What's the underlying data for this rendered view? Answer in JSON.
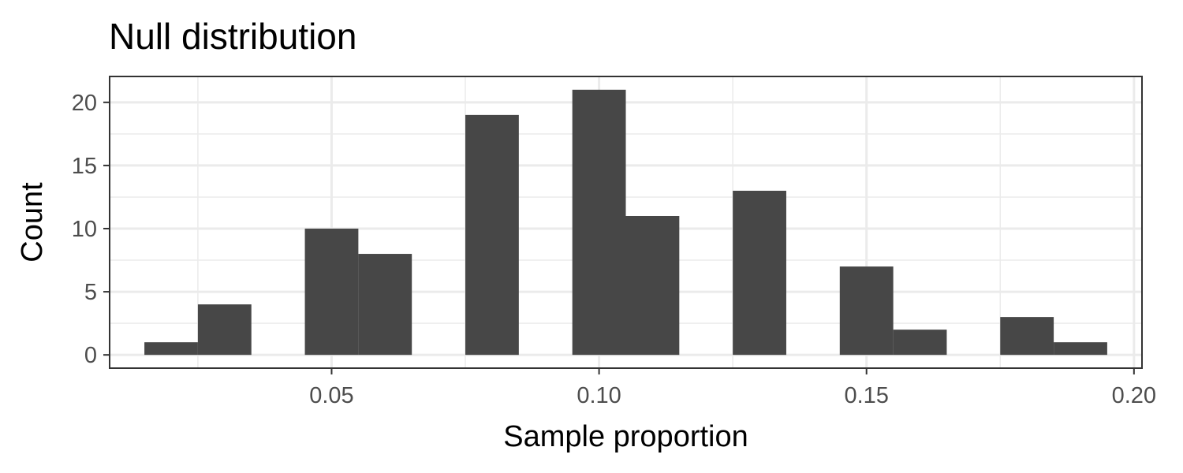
{
  "chart_data": {
    "type": "bar",
    "title": "Null distribution",
    "xlabel": "Sample proportion",
    "ylabel": "Count",
    "bin_width": 0.01,
    "bins": [
      {
        "x": 0.02,
        "count": 1
      },
      {
        "x": 0.03,
        "count": 4
      },
      {
        "x": 0.05,
        "count": 10
      },
      {
        "x": 0.06,
        "count": 8
      },
      {
        "x": 0.08,
        "count": 19
      },
      {
        "x": 0.1,
        "count": 21
      },
      {
        "x": 0.11,
        "count": 11
      },
      {
        "x": 0.13,
        "count": 13
      },
      {
        "x": 0.15,
        "count": 7
      },
      {
        "x": 0.16,
        "count": 2
      },
      {
        "x": 0.18,
        "count": 3
      },
      {
        "x": 0.19,
        "count": 1
      }
    ],
    "xlim": [
      0.0085,
      0.2015
    ],
    "ylim": [
      -1.05,
      22.05
    ],
    "x_ticks": [
      0.05,
      0.1,
      0.15,
      0.2
    ],
    "x_tick_labels": [
      "0.05",
      "0.10",
      "0.15",
      "0.20"
    ],
    "x_minor_ticks": [
      0.025,
      0.075,
      0.125,
      0.175
    ],
    "y_ticks": [
      0,
      5,
      10,
      15,
      20
    ],
    "y_tick_labels": [
      "0",
      "5",
      "10",
      "15",
      "20"
    ],
    "y_minor_ticks": [
      2.5,
      7.5,
      12.5,
      17.5
    ],
    "grid": true,
    "bar_color": "#474747",
    "grid_color": "#ebebeb",
    "border_color": "#333333"
  }
}
